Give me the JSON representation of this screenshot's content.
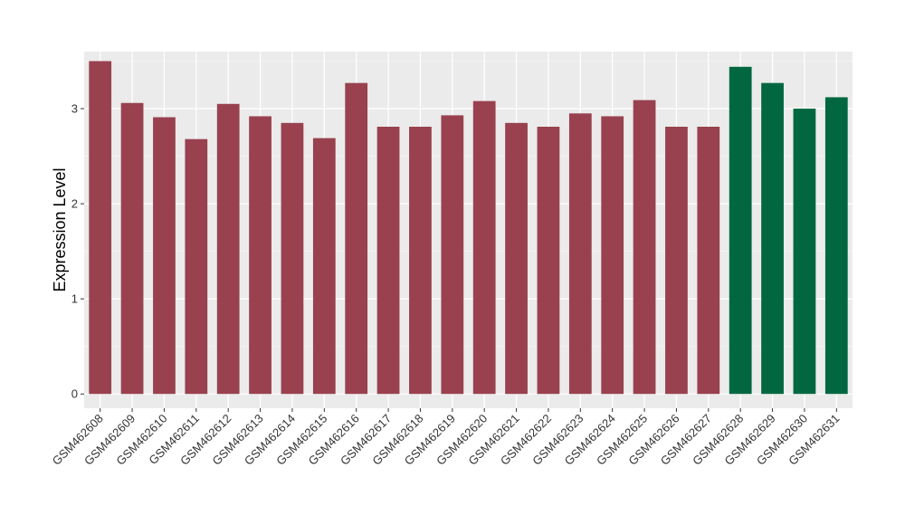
{
  "chart_data": {
    "type": "bar",
    "title": "",
    "xlabel": "",
    "ylabel": "Expression Level",
    "ylim": [
      -0.15,
      3.6
    ],
    "yticks": [
      0,
      1,
      2,
      3
    ],
    "grid": true,
    "legend": "none",
    "colors": {
      "panel_bg": "#ebebeb",
      "grid_major": "#ffffff",
      "grid_minor": "#f5f5f5",
      "group_a": "#99414f",
      "group_b": "#006741"
    },
    "categories": [
      "GSM462608",
      "GSM462609",
      "GSM462610",
      "GSM462611",
      "GSM462612",
      "GSM462613",
      "GSM462614",
      "GSM462615",
      "GSM462616",
      "GSM462617",
      "GSM462618",
      "GSM462619",
      "GSM462620",
      "GSM462621",
      "GSM462622",
      "GSM462623",
      "GSM462624",
      "GSM462625",
      "GSM462626",
      "GSM462627",
      "GSM462628",
      "GSM462629",
      "GSM462630",
      "GSM462631"
    ],
    "values": [
      3.5,
      3.06,
      2.91,
      2.68,
      3.05,
      2.92,
      2.85,
      2.69,
      3.27,
      2.81,
      2.81,
      2.93,
      3.08,
      2.85,
      2.81,
      2.95,
      2.92,
      3.09,
      2.81,
      2.81,
      3.44,
      3.27,
      3.0,
      3.12
    ],
    "bar_groups": [
      "a",
      "a",
      "a",
      "a",
      "a",
      "a",
      "a",
      "a",
      "a",
      "a",
      "a",
      "a",
      "a",
      "a",
      "a",
      "a",
      "a",
      "a",
      "a",
      "a",
      "b",
      "b",
      "b",
      "b"
    ]
  }
}
